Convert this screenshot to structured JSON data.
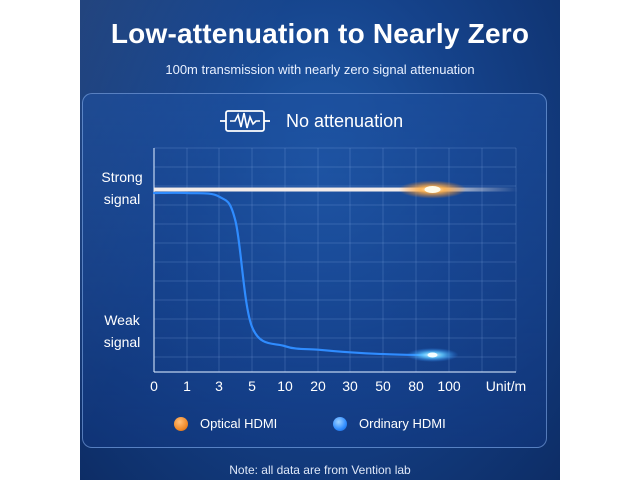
{
  "title": "Low-attenuation to Nearly Zero",
  "subtitle": "100m transmission with nearly zero signal attenuation",
  "badge": {
    "icon": "signal-wave-icon",
    "text": "No attenuation"
  },
  "note": "Note: all data are from Vention lab",
  "chart_data": {
    "type": "line",
    "title": "Low-attenuation to Nearly Zero",
    "subtitle": "100m transmission with nearly zero signal attenuation",
    "x_tick_labels": [
      "0",
      "1",
      "3",
      "5",
      "10",
      "20",
      "30",
      "50",
      "80",
      "100"
    ],
    "x_unit_label": "Unit/m",
    "y_labels": {
      "top": [
        "Strong",
        "signal"
      ],
      "bottom": [
        "Weak",
        "signal"
      ]
    },
    "ylim": [
      0,
      1
    ],
    "grid": true,
    "legend_position": "bottom",
    "series": [
      {
        "name": "Optical HDMI",
        "color": "#f08a2a",
        "x": [
          0,
          1,
          3,
          5,
          10,
          20,
          30,
          50,
          80,
          100
        ],
        "y": [
          0.98,
          0.98,
          0.98,
          0.98,
          0.98,
          0.98,
          0.98,
          0.98,
          0.98,
          0.98
        ]
      },
      {
        "name": "Ordinary HDMI",
        "color": "#2f8cff",
        "x": [
          0,
          1,
          3,
          4,
          5,
          10,
          20,
          30,
          50,
          80,
          90
        ],
        "y": [
          0.96,
          0.96,
          0.94,
          0.8,
          0.2,
          0.09,
          0.07,
          0.055,
          0.045,
          0.04,
          0.04
        ]
      }
    ]
  }
}
